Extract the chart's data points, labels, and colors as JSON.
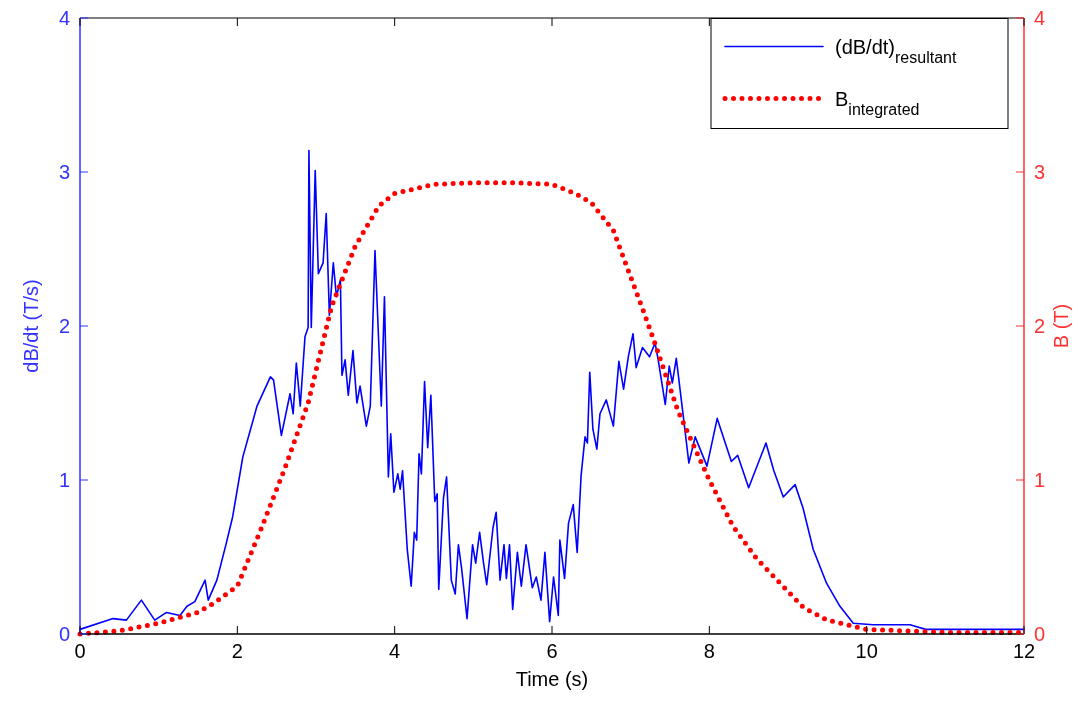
{
  "chart_data": {
    "type": "line",
    "xlabel": "Time (s)",
    "ylabel": "dB/dt (T/s)",
    "y2label": "B (T)",
    "xlim": [
      0,
      12
    ],
    "xticks": [
      0,
      2,
      4,
      6,
      8,
      10,
      12
    ],
    "ylim": [
      0,
      4
    ],
    "yticks": [
      0,
      1,
      2,
      3,
      4
    ],
    "y2lim": [
      0,
      4
    ],
    "y2ticks": [
      0,
      1,
      2,
      3,
      4
    ],
    "grid": false,
    "legend": "top right",
    "marker": "none",
    "series": [
      {
        "name": "(dB/dt)$_{resultant}$",
        "color": "#0000ff",
        "line_style": "solid",
        "x": [
          0,
          0.42,
          0.59,
          0.78,
          0.95,
          1.1,
          1.27,
          1.36,
          1.46,
          1.59,
          1.63,
          1.74,
          1.86,
          1.94,
          2.07,
          2.25,
          2.42,
          2.46,
          2.56,
          2.67,
          2.71,
          2.75,
          2.8,
          2.86,
          2.9,
          2.91,
          2.94,
          2.99,
          3.03,
          3.09,
          3.13,
          3.17,
          3.22,
          3.26,
          3.31,
          3.33,
          3.37,
          3.41,
          3.47,
          3.52,
          3.56,
          3.64,
          3.69,
          3.75,
          3.83,
          3.87,
          3.92,
          3.95,
          3.99,
          4.04,
          4.07,
          4.1,
          4.16,
          4.21,
          4.25,
          4.28,
          4.31,
          4.34,
          4.38,
          4.42,
          4.46,
          4.51,
          4.54,
          4.56,
          4.62,
          4.66,
          4.72,
          4.77,
          4.81,
          4.85,
          4.92,
          4.99,
          5.03,
          5.08,
          5.13,
          5.17,
          5.25,
          5.29,
          5.34,
          5.39,
          5.42,
          5.46,
          5.5,
          5.56,
          5.61,
          5.67,
          5.75,
          5.8,
          5.86,
          5.91,
          5.97,
          6.02,
          6.08,
          6.1,
          6.16,
          6.21,
          6.27,
          6.32,
          6.37,
          6.42,
          6.45,
          6.48,
          6.52,
          6.57,
          6.61,
          6.69,
          6.78,
          6.85,
          6.91,
          6.97,
          7.03,
          7.07,
          7.15,
          7.24,
          7.31,
          7.35,
          7.44,
          7.49,
          7.53,
          7.58,
          7.67,
          7.74,
          7.82,
          7.97,
          8.1,
          8.28,
          8.36,
          8.5,
          8.72,
          8.82,
          8.94,
          9.09,
          9.19,
          9.32,
          9.49,
          9.66,
          9.83,
          10.08,
          10.55,
          10.75,
          12
        ],
        "values": [
          0.03,
          0.1,
          0.09,
          0.22,
          0.09,
          0.14,
          0.12,
          0.18,
          0.21,
          0.35,
          0.22,
          0.35,
          0.59,
          0.76,
          1.15,
          1.48,
          1.67,
          1.65,
          1.29,
          1.56,
          1.43,
          1.76,
          1.48,
          1.93,
          1.99,
          3.14,
          1.99,
          3.01,
          2.34,
          2.41,
          2.73,
          2.07,
          2.41,
          2.19,
          2.3,
          1.68,
          1.78,
          1.55,
          1.84,
          1.5,
          1.61,
          1.35,
          1.48,
          2.49,
          1.48,
          2.19,
          1.02,
          1.3,
          0.92,
          1.04,
          0.94,
          1.06,
          0.55,
          0.31,
          0.66,
          0.61,
          1.17,
          1.04,
          1.64,
          1.21,
          1.55,
          0.86,
          0.91,
          0.29,
          0.88,
          1.02,
          0.35,
          0.26,
          0.58,
          0.43,
          0.1,
          0.58,
          0.46,
          0.66,
          0.46,
          0.32,
          0.69,
          0.79,
          0.35,
          0.58,
          0.36,
          0.58,
          0.16,
          0.53,
          0.31,
          0.58,
          0.3,
          0.37,
          0.22,
          0.53,
          0.08,
          0.37,
          0.12,
          0.61,
          0.36,
          0.72,
          0.84,
          0.53,
          1.03,
          1.28,
          1.24,
          1.7,
          1.33,
          1.2,
          1.43,
          1.52,
          1.35,
          1.77,
          1.59,
          1.8,
          1.95,
          1.73,
          1.86,
          1.8,
          1.89,
          1.78,
          1.49,
          1.74,
          1.63,
          1.79,
          1.41,
          1.11,
          1.28,
          1.09,
          1.4,
          1.12,
          1.16,
          0.95,
          1.24,
          1.06,
          0.89,
          0.97,
          0.82,
          0.55,
          0.33,
          0.18,
          0.07,
          0.06,
          0.06,
          0.03,
          0.03
        ]
      },
      {
        "name": "B$_{integrated}$",
        "color": "#ff0000",
        "line_style": "dotted",
        "axis": "y2",
        "x": [
          0,
          0.5,
          1,
          1.5,
          1.7,
          2,
          2.3,
          2.6,
          2.9,
          3.2,
          3.5,
          3.8,
          4,
          4.5,
          5,
          5.5,
          6,
          6.3,
          6.5,
          6.78,
          7.16,
          7.3,
          7.6,
          8,
          8.3,
          8.6,
          8.9,
          9.2,
          9.5,
          10,
          10.5,
          11,
          12
        ],
        "values": [
          0,
          0.02,
          0.07,
          0.14,
          0.2,
          0.31,
          0.68,
          1.07,
          1.5,
          2.13,
          2.52,
          2.78,
          2.86,
          2.92,
          2.93,
          2.93,
          2.92,
          2.86,
          2.8,
          2.62,
          2.1,
          1.9,
          1.45,
          1,
          0.7,
          0.49,
          0.33,
          0.17,
          0.09,
          0.03,
          0.02,
          0.01,
          0.01
        ]
      }
    ]
  }
}
